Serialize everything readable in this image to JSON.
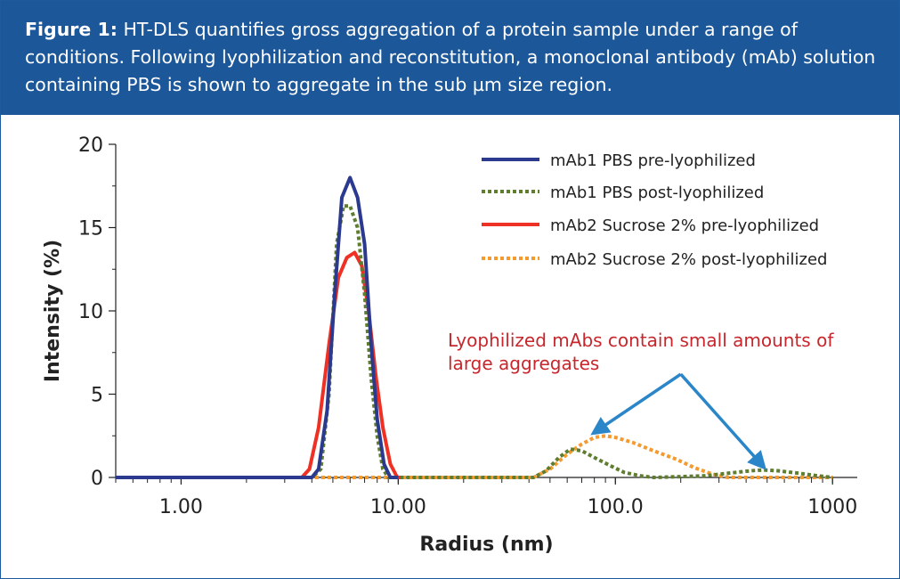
{
  "caption": {
    "label": "Figure 1:",
    "text": "HT-DLS quantifies gross aggregation of a protein sample under a range of conditions. Following lyophilization and reconstitution, a monoclonal antibody (mAb) solution containing PBS is shown to aggregate in the sub µm size region."
  },
  "colors": {
    "header_bg": "#1c5799",
    "series1": "#2b3a8f",
    "series2": "#5e7d2e",
    "series3": "#ee3124",
    "series4": "#f59a2e",
    "annotation_text": "#c8262c",
    "arrow": "#2a86c9"
  },
  "chart_data": {
    "type": "line",
    "xscale": "log",
    "xlabel": "Radius (nm)",
    "ylabel": "Intensity (%)",
    "xlim": [
      0.5,
      1300
    ],
    "ylim": [
      0,
      20
    ],
    "xticks": [
      1,
      10,
      100,
      1000
    ],
    "xtick_labels": [
      "1.00",
      "10.00",
      "100.0",
      "1000"
    ],
    "yticks": [
      0,
      5,
      10,
      15,
      20
    ],
    "ytick_labels": [
      "0",
      "5",
      "10",
      "15",
      "20"
    ],
    "grid": false,
    "legend_position": "top-right",
    "series": [
      {
        "name": "mAb1 PBS pre-lyophilized",
        "style": "solid",
        "points": [
          [
            0.5,
            0
          ],
          [
            4.0,
            0
          ],
          [
            4.3,
            0.5
          ],
          [
            4.7,
            4
          ],
          [
            5.1,
            11
          ],
          [
            5.5,
            16.8
          ],
          [
            6.0,
            18
          ],
          [
            6.5,
            16.8
          ],
          [
            7.0,
            14
          ],
          [
            7.5,
            8
          ],
          [
            8.0,
            3.5
          ],
          [
            8.6,
            0.8
          ],
          [
            9.2,
            0
          ],
          [
            10,
            0
          ]
        ]
      },
      {
        "name": "mAb1 PBS post-lyophilized",
        "style": "dotted",
        "points": [
          [
            0.5,
            0
          ],
          [
            4.0,
            0
          ],
          [
            4.4,
            0.5
          ],
          [
            4.8,
            5
          ],
          [
            5.2,
            14
          ],
          [
            5.6,
            16.3
          ],
          [
            6.0,
            16.3
          ],
          [
            6.5,
            15
          ],
          [
            7.0,
            11
          ],
          [
            7.5,
            6
          ],
          [
            8.0,
            2.5
          ],
          [
            8.5,
            0.5
          ],
          [
            9.0,
            0
          ],
          [
            42,
            0
          ],
          [
            48,
            0.4
          ],
          [
            55,
            1.2
          ],
          [
            62,
            1.7
          ],
          [
            70,
            1.6
          ],
          [
            80,
            1.2
          ],
          [
            95,
            0.7
          ],
          [
            110,
            0.3
          ],
          [
            130,
            0.1
          ],
          [
            150,
            0
          ],
          [
            200,
            0.05
          ],
          [
            260,
            0.1
          ],
          [
            330,
            0.25
          ],
          [
            420,
            0.4
          ],
          [
            480,
            0.45
          ],
          [
            560,
            0.4
          ],
          [
            700,
            0.25
          ],
          [
            850,
            0.1
          ],
          [
            1000,
            0
          ]
        ]
      },
      {
        "name": "mAb2 Sucrose 2% pre-lyophilized",
        "style": "solid",
        "points": [
          [
            0.5,
            0
          ],
          [
            3.6,
            0
          ],
          [
            3.9,
            0.5
          ],
          [
            4.3,
            3
          ],
          [
            4.8,
            8
          ],
          [
            5.3,
            12
          ],
          [
            5.8,
            13.2
          ],
          [
            6.3,
            13.5
          ],
          [
            6.8,
            12.7
          ],
          [
            7.3,
            10
          ],
          [
            7.9,
            6
          ],
          [
            8.5,
            3
          ],
          [
            9.2,
            0.8
          ],
          [
            9.9,
            0
          ],
          [
            10.5,
            0
          ]
        ]
      },
      {
        "name": "mAb2 Sucrose 2% post-lyophilized",
        "style": "dotted",
        "points": [
          [
            0.5,
            0
          ],
          [
            9.5,
            0
          ],
          [
            42,
            0
          ],
          [
            50,
            0.5
          ],
          [
            60,
            1.4
          ],
          [
            70,
            2.0
          ],
          [
            80,
            2.4
          ],
          [
            90,
            2.5
          ],
          [
            100,
            2.4
          ],
          [
            120,
            2.1
          ],
          [
            150,
            1.6
          ],
          [
            190,
            1.1
          ],
          [
            230,
            0.6
          ],
          [
            280,
            0.2
          ],
          [
            330,
            0
          ],
          [
            500,
            0
          ],
          [
            1000,
            0
          ]
        ]
      }
    ],
    "annotation": {
      "text_lines": [
        "Lyophilized mAbs contain small amounts of",
        "large aggregates"
      ],
      "arrow_origin": [
        200,
        6.2
      ],
      "arrow_targets": [
        [
          80,
          2.7
        ],
        [
          480,
          0.65
        ]
      ]
    }
  }
}
